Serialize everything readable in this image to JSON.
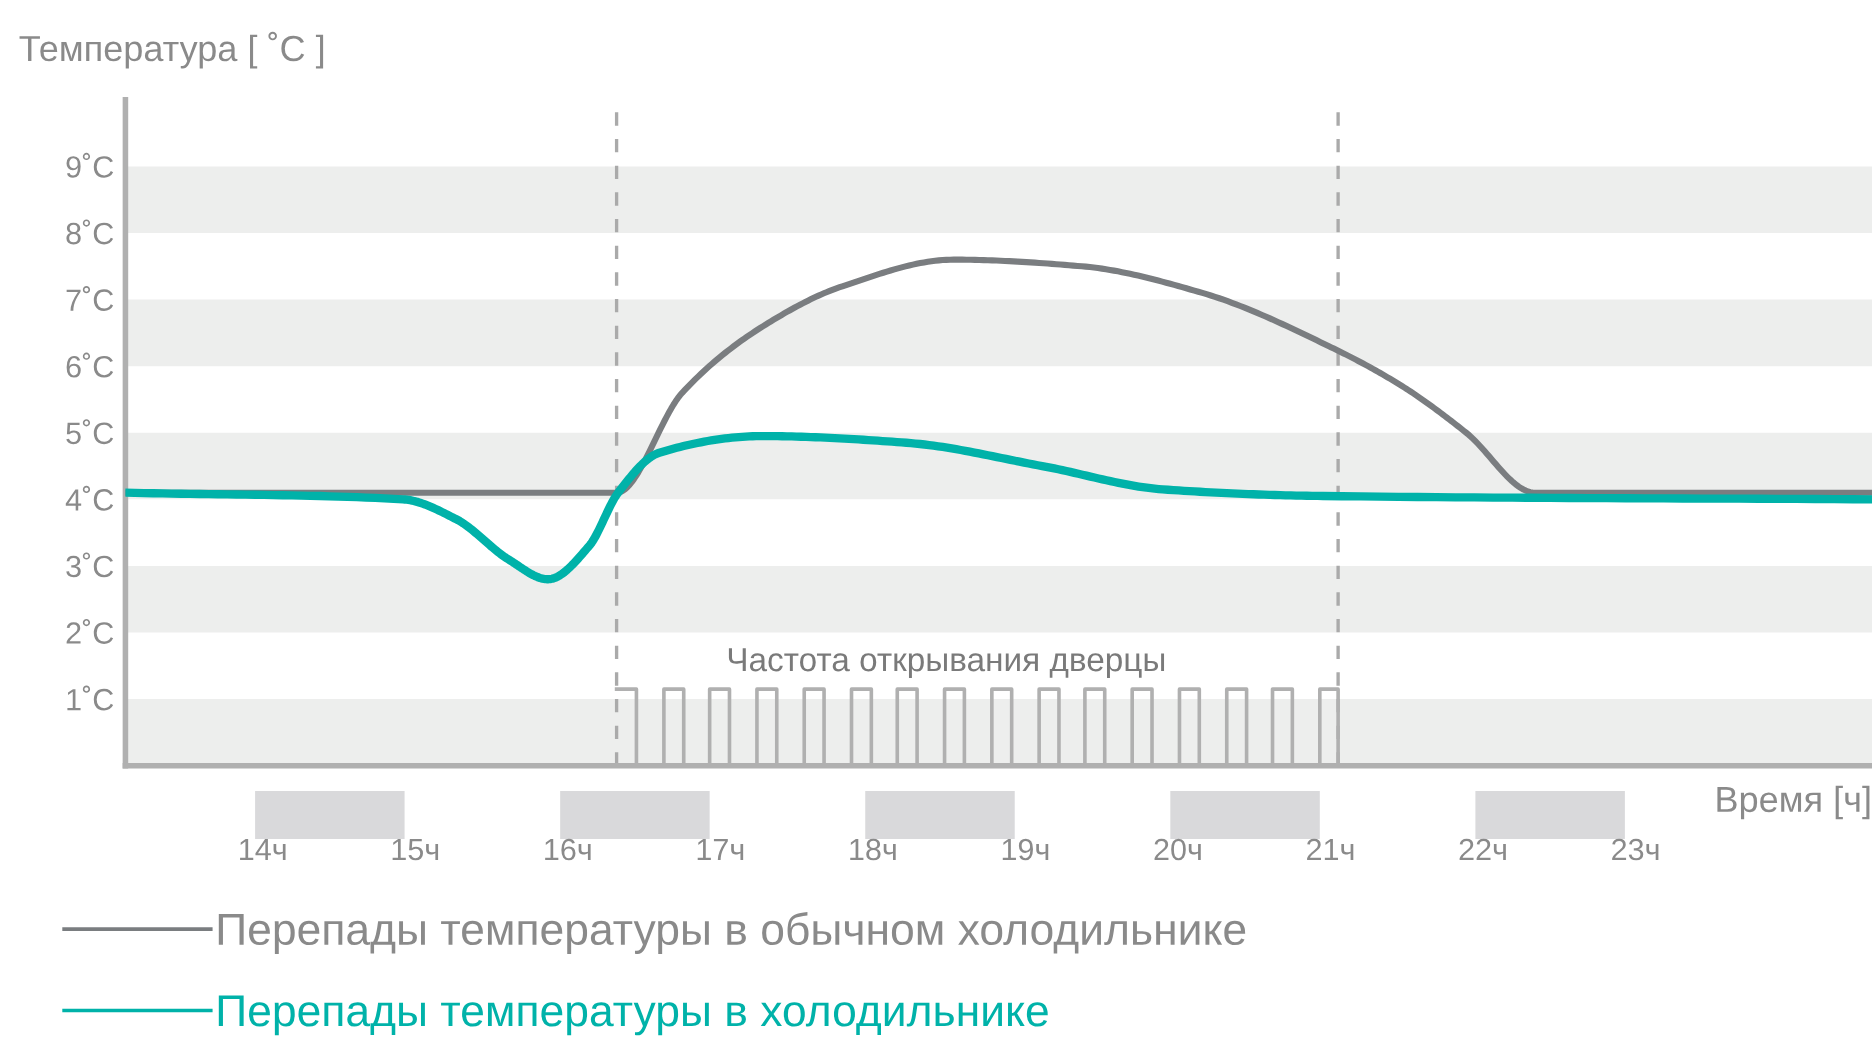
{
  "chart_data": {
    "type": "line",
    "ylabel": "Температура [ ˚C ]",
    "xlabel": "Время [ч]",
    "xlim": [
      13.1,
      24.55
    ],
    "ylim": [
      0,
      10
    ],
    "xticks": [
      {
        "value": 14,
        "label": "14ч"
      },
      {
        "value": 15,
        "label": "15ч"
      },
      {
        "value": 16,
        "label": "16ч"
      },
      {
        "value": 17,
        "label": "17ч"
      },
      {
        "value": 18,
        "label": "18ч"
      },
      {
        "value": 19,
        "label": "19ч"
      },
      {
        "value": 20,
        "label": "20ч"
      },
      {
        "value": 21,
        "label": "21ч"
      },
      {
        "value": 22,
        "label": "22ч"
      },
      {
        "value": 23,
        "label": "23ч"
      }
    ],
    "yticks": [
      {
        "value": 1,
        "label": "1˚C"
      },
      {
        "value": 2,
        "label": "2˚C"
      },
      {
        "value": 3,
        "label": "3˚C"
      },
      {
        "value": 4,
        "label": "4˚C"
      },
      {
        "value": 5,
        "label": "5˚C"
      },
      {
        "value": 6,
        "label": "6˚C"
      },
      {
        "value": 7,
        "label": "7˚C"
      },
      {
        "value": 8,
        "label": "8˚C"
      },
      {
        "value": 9,
        "label": "9˚C"
      }
    ],
    "grid": false,
    "legend": "bottom",
    "series": [
      {
        "name": "Перепады температуры в обычном холодильнике",
        "color": "#7a7d80",
        "x": [
          13.1,
          16.32,
          16.75,
          17.28,
          17.8,
          18.53,
          19.37,
          20.16,
          20.99,
          21.47,
          21.89,
          22.34,
          24.55
        ],
        "values": [
          4.1,
          4.1,
          5.6,
          6.6,
          7.2,
          7.6,
          7.5,
          7.1,
          6.3,
          5.7,
          5.0,
          4.1,
          4.1
        ]
      },
      {
        "name": "Перепады температуры в холодильнике",
        "color": "#00b2a9",
        "x": [
          13.1,
          14.92,
          15.27,
          15.61,
          15.87,
          16.14,
          16.33,
          16.6,
          17.28,
          18.22,
          19.11,
          19.9,
          20.95,
          24.55
        ],
        "values": [
          4.1,
          4.0,
          3.7,
          3.1,
          2.8,
          3.3,
          4.1,
          4.7,
          4.95,
          4.85,
          4.5,
          4.15,
          4.05,
          4.0
        ]
      },
      {
        "type": "step",
        "color": "#b0b0b0",
        "x": [
          16.32,
          16.45,
          16.63,
          16.76,
          16.93,
          17.06,
          17.24,
          17.37,
          17.55,
          17.68,
          17.86,
          17.99,
          18.16,
          18.29,
          18.47,
          18.6,
          18.78,
          18.91,
          19.09,
          19.22,
          19.39,
          19.52,
          19.7,
          19.83,
          20.01,
          20.14,
          20.32,
          20.45,
          20.62,
          20.75,
          20.93,
          21.05
        ],
        "values": [
          1.15,
          0,
          1.15,
          0,
          1.15,
          0,
          1.15,
          0,
          1.15,
          0,
          1.15,
          0,
          1.15,
          0,
          1.15,
          0,
          1.15,
          0,
          1.15,
          0,
          1.15,
          0,
          1.15,
          0,
          1.15,
          0,
          1.15,
          0,
          1.15,
          0,
          1.15,
          0
        ]
      }
    ],
    "ref_lines": [
      {
        "axis": "x",
        "value": 16.32,
        "color": "#aaaaaa",
        "line_style": "dashed"
      },
      {
        "axis": "x",
        "value": 21.05,
        "color": "#aaaaaa",
        "line_style": "dashed"
      }
    ],
    "bands": [
      {
        "axis": "y",
        "from": 0,
        "to": 1,
        "color": "#edeeed"
      },
      {
        "axis": "y",
        "from": 2,
        "to": 3,
        "color": "#edeeed"
      },
      {
        "axis": "y",
        "from": 4,
        "to": 5,
        "color": "#edeeed"
      },
      {
        "axis": "y",
        "from": 6,
        "to": 7,
        "color": "#edeeed"
      },
      {
        "axis": "y",
        "from": 8,
        "to": 9,
        "color": "#edeeed"
      }
    ],
    "annotations": [
      "Частота открывания дверцы"
    ]
  }
}
